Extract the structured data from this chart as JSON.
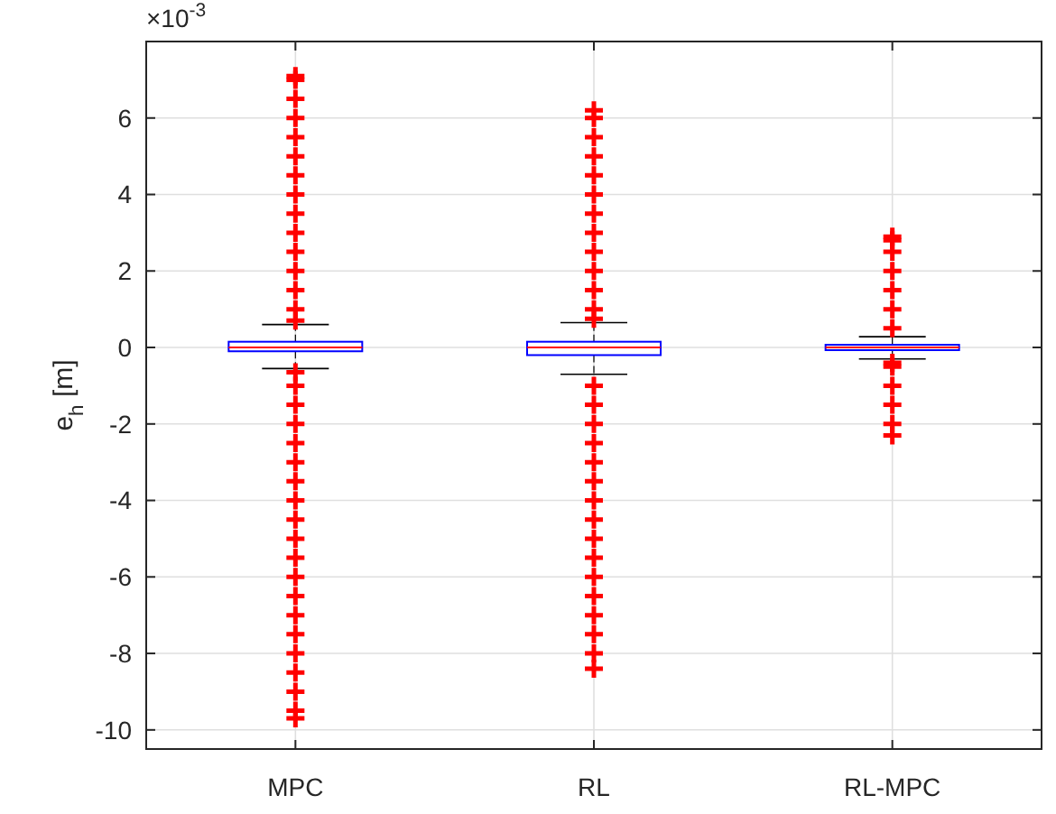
{
  "chart_data": {
    "type": "box",
    "ylabel": "e$_{h}$ [m]",
    "annotations": [
      "×10$^{-3}$"
    ],
    "categories": [
      "MPC",
      "RL",
      "RL-MPC"
    ],
    "boxes": [
      {
        "low": -0.55,
        "q1": -0.1,
        "median": 0,
        "q3": 0.15,
        "high": 0.6,
        "outliers": [
          0.7,
          1,
          1.5,
          2,
          2.5,
          3,
          3.5,
          4,
          4.5,
          5,
          5.5,
          6,
          6.5,
          7,
          7.1,
          -0.65,
          -1,
          -1.5,
          -2,
          -2.5,
          -3,
          -3.5,
          -4,
          -4.5,
          -5,
          -5.5,
          -6,
          -6.5,
          -7,
          -7.5,
          -8,
          -8.5,
          -9,
          -9.5,
          -9.7
        ]
      },
      {
        "low": -0.7,
        "q1": -0.2,
        "median": 0,
        "q3": 0.15,
        "high": 0.65,
        "outliers": [
          0.75,
          1,
          1.5,
          2,
          2.5,
          3,
          3.5,
          4,
          4.5,
          5,
          5.5,
          6,
          6.2,
          -1,
          -1.5,
          -2,
          -2.5,
          -3,
          -3.5,
          -4,
          -4.5,
          -5,
          -5.5,
          -6,
          -6.5,
          -7,
          -7.5,
          -8,
          -8.4
        ]
      },
      {
        "low": -0.3,
        "q1": -0.07,
        "median": 0,
        "q3": 0.07,
        "high": 0.28,
        "outliers": [
          0.5,
          1,
          1.5,
          2,
          2.5,
          2.8,
          2.9,
          -0.4,
          -0.5,
          -1,
          -1.5,
          -2,
          -2.3
        ]
      }
    ],
    "color": "#0000ff",
    "marker": "cross",
    "ylim": [
      -10.5,
      8
    ],
    "yticks": [
      -10,
      -8,
      -6,
      -4,
      -2,
      0,
      2,
      4,
      6
    ],
    "grid": true
  }
}
